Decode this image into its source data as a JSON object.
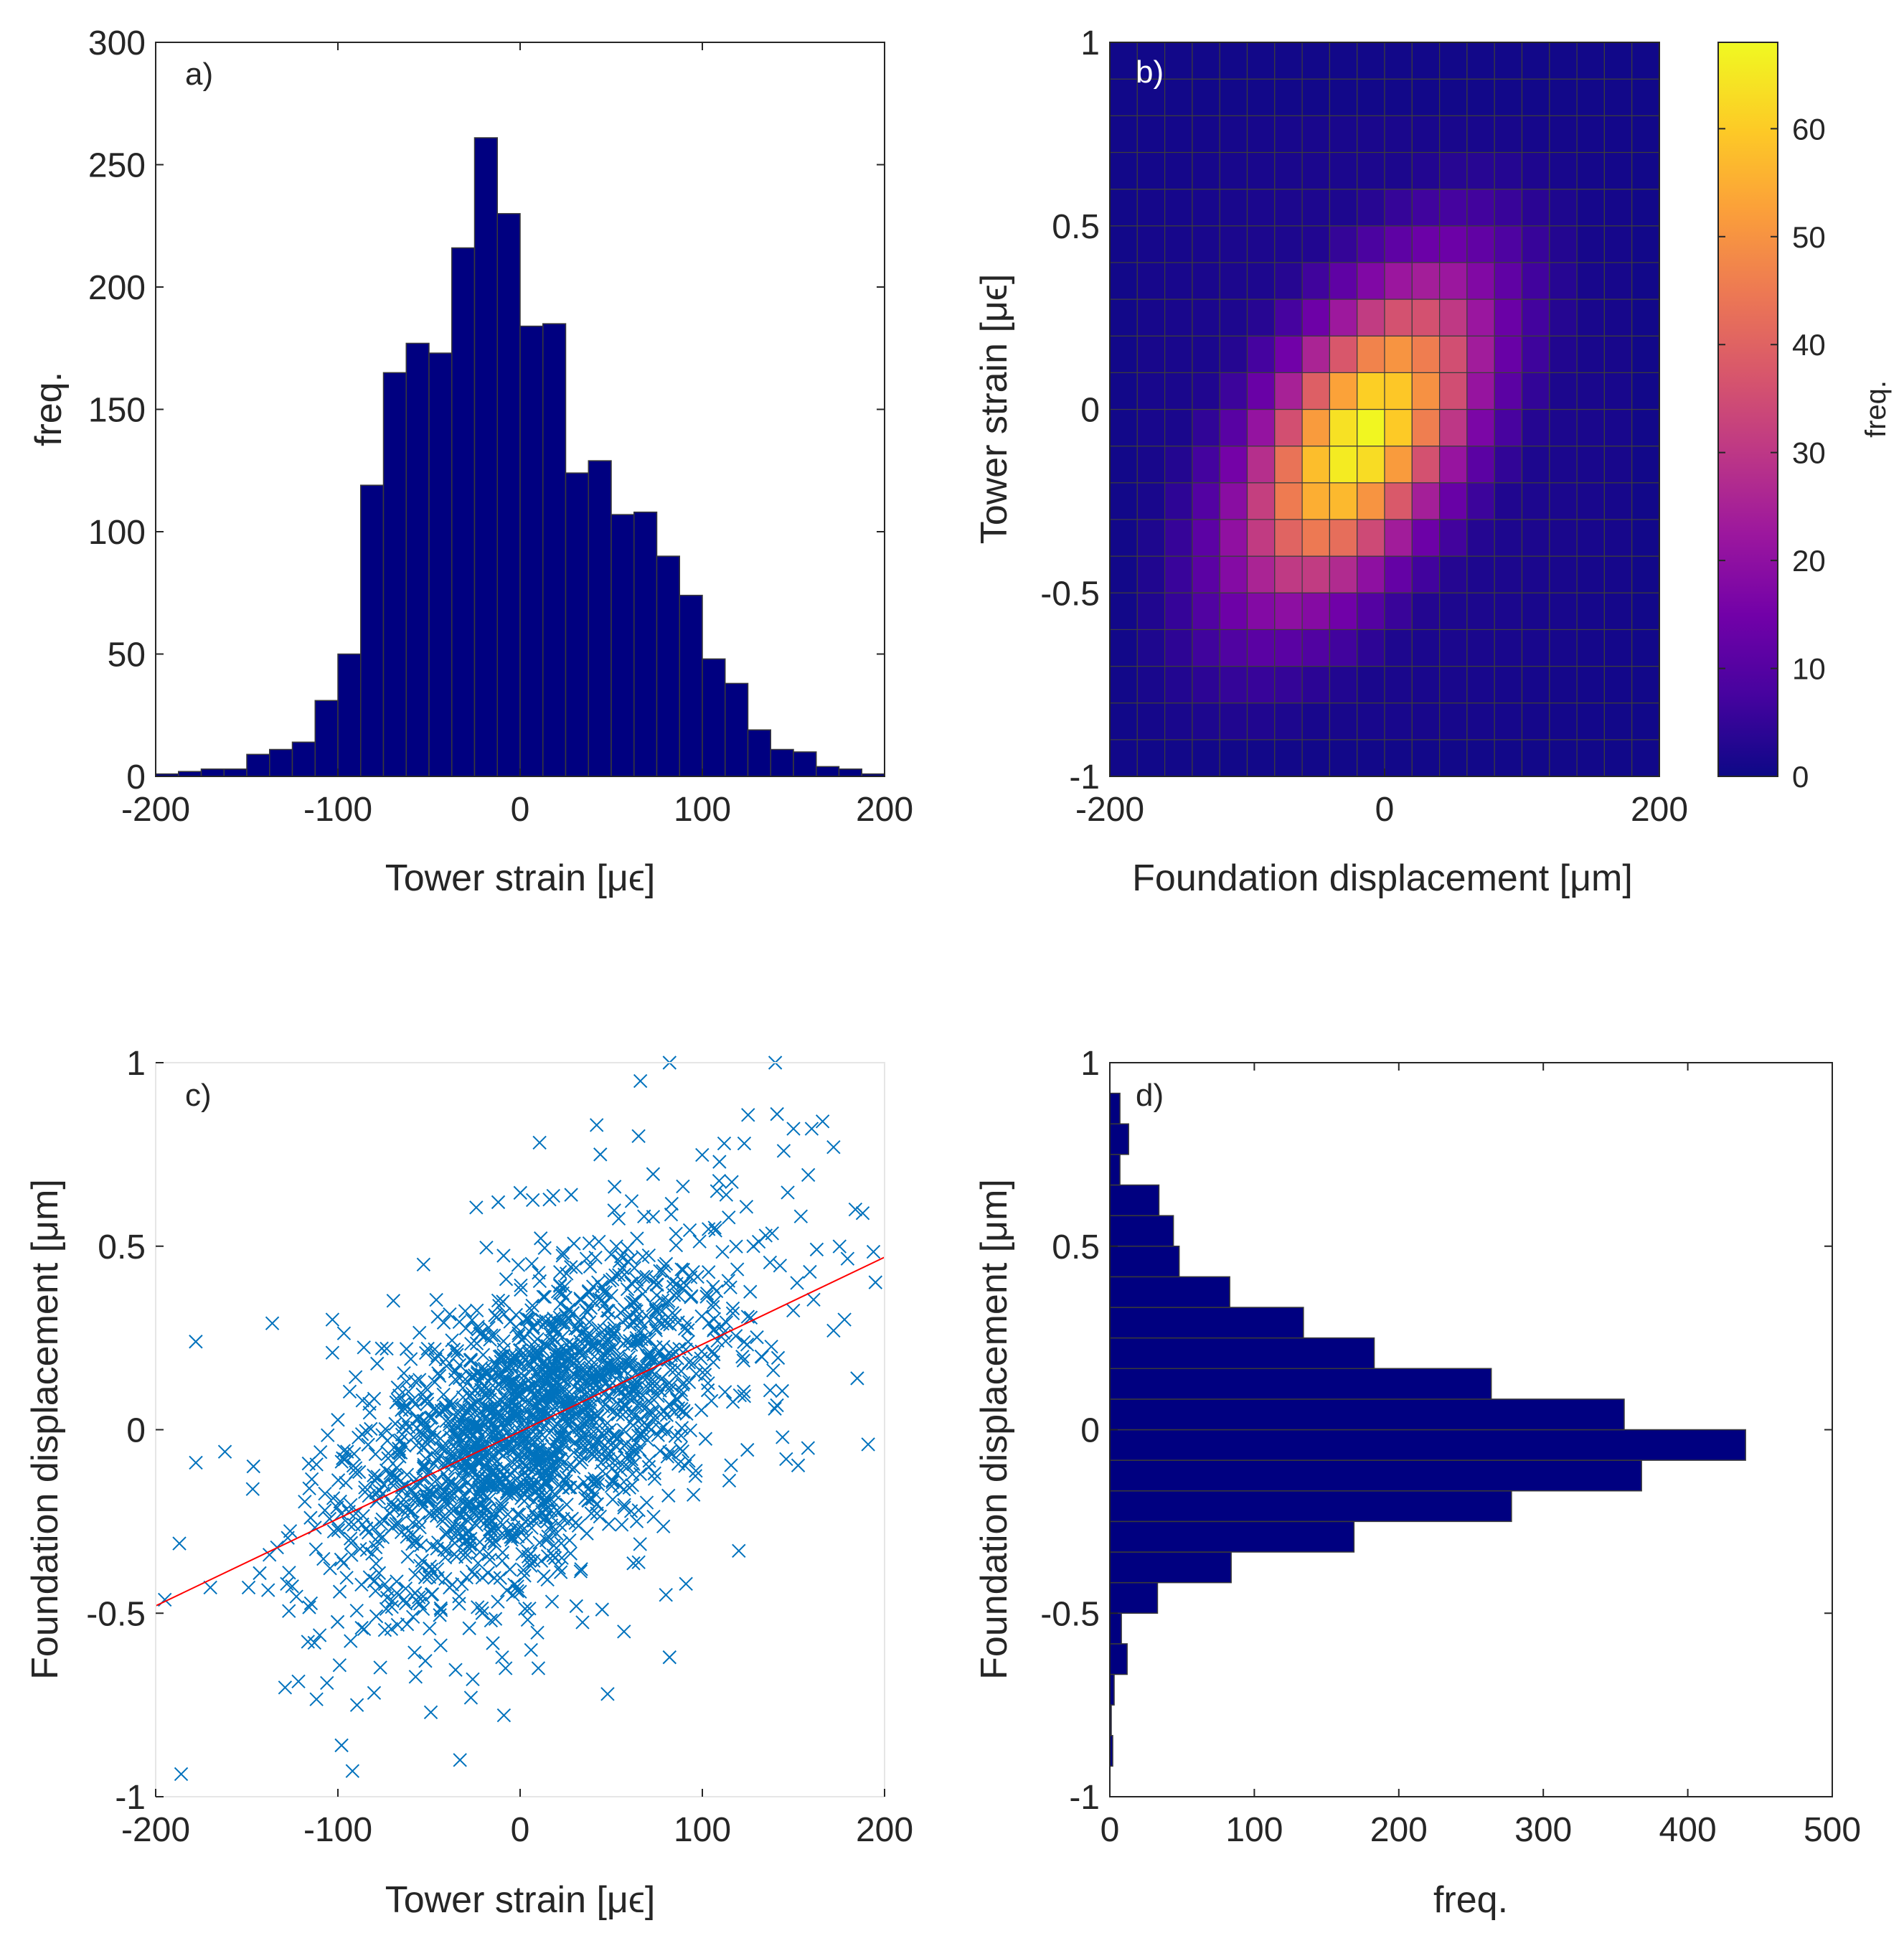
{
  "chart_data": [
    {
      "panel": "a)",
      "type": "bar",
      "title": "",
      "xlabel": "Tower strain [μϵ]",
      "ylabel": "freq.",
      "xlim": [
        -200,
        200
      ],
      "ylim": [
        0,
        300
      ],
      "xticks": [
        "-200",
        "-100",
        "0",
        "100",
        "200"
      ],
      "yticks": [
        "0",
        "50",
        "100",
        "150",
        "200",
        "250",
        "300"
      ],
      "bin_edges": [
        -200,
        -187.5,
        -175,
        -162.5,
        -150,
        -137.5,
        -125,
        -112.5,
        -100,
        -87.5,
        -75,
        -62.5,
        -50,
        -37.5,
        -25,
        -12.5,
        0,
        12.5,
        25,
        37.5,
        50,
        62.5,
        75,
        87.5,
        100,
        112.5,
        125,
        137.5,
        150,
        162.5,
        175,
        187.5,
        200
      ],
      "values": [
        1,
        2,
        3,
        3,
        9,
        11,
        14,
        31,
        50,
        119,
        165,
        177,
        173,
        216,
        261,
        230,
        184,
        185,
        124,
        129,
        107,
        108,
        90,
        74,
        48,
        38,
        19,
        11,
        10,
        4,
        3,
        1
      ],
      "bar_color": "#000080"
    },
    {
      "panel": "b)",
      "type": "heatmap",
      "xlabel": "Foundation displacement [μm]",
      "ylabel": "Tower strain [μϵ]",
      "colorbar_label": "freq.",
      "xlim": [
        -200,
        200
      ],
      "ylim": [
        -1,
        1
      ],
      "clim": [
        0,
        68
      ],
      "xticks": [
        "-200",
        "0",
        "200"
      ],
      "yticks": [
        "-1",
        "-0.5",
        "0",
        "0.5",
        "1"
      ],
      "colorbar_ticks": [
        "0",
        "10",
        "20",
        "30",
        "40",
        "50",
        "60"
      ],
      "grid_size": [
        20,
        20
      ],
      "peak": {
        "x": -17,
        "y": -0.08,
        "count": 68
      },
      "colormap": [
        "#0d0887",
        "#46039f",
        "#7201a8",
        "#9c179e",
        "#bd3786",
        "#d8576b",
        "#ed7953",
        "#fb9f3a",
        "#fdca26",
        "#f0f921"
      ]
    },
    {
      "panel": "c)",
      "type": "scatter",
      "xlabel": "Tower strain [μϵ]",
      "ylabel": "Foundation displacement [μm]",
      "xlim": [
        -200,
        200
      ],
      "ylim": [
        -1,
        1
      ],
      "xticks": [
        "-200",
        "-100",
        "0",
        "100",
        "200"
      ],
      "yticks": [
        "-1",
        "-0.5",
        "0",
        "0.5",
        "1"
      ],
      "marker": "x",
      "marker_color": "#0072bd",
      "n_points": 2000,
      "fit_line": {
        "x": [
          -200,
          200
        ],
        "y": [
          -0.48,
          0.47
        ],
        "color": "#ff0000"
      },
      "outliers": [
        [
          -187,
          -0.31
        ],
        [
          -178,
          0.24
        ],
        [
          -170,
          -0.43
        ],
        [
          -162,
          -0.06
        ],
        [
          -149,
          -0.43
        ],
        [
          -136,
          0.29
        ],
        [
          -128,
          -0.42
        ],
        [
          -115,
          -0.24
        ],
        [
          -110,
          -0.56
        ],
        [
          -106,
          -0.69
        ],
        [
          -103,
          0.3
        ],
        [
          -98,
          -0.86
        ],
        [
          -92,
          -0.93
        ],
        [
          -62,
          -0.53
        ],
        [
          -53,
          0.45
        ],
        [
          -52,
          -0.63
        ],
        [
          -49,
          -0.77
        ],
        [
          -33,
          -0.9
        ],
        [
          -27,
          -0.73
        ],
        [
          -26,
          -0.68
        ],
        [
          -16,
          -0.52
        ],
        [
          -12,
          0.62
        ],
        [
          -8,
          -0.65
        ],
        [
          -4,
          -0.45
        ],
        [
          6,
          -0.6
        ],
        [
          10,
          -0.65
        ],
        [
          28,
          0.64
        ],
        [
          33,
          0.3
        ],
        [
          42,
          0.83
        ],
        [
          44,
          0.75
        ],
        [
          45,
          -0.49
        ],
        [
          48,
          -0.72
        ],
        [
          57,
          -0.55
        ],
        [
          65,
          0.8
        ],
        [
          66,
          0.95
        ],
        [
          73,
          0.58
        ],
        [
          80,
          -0.45
        ],
        [
          82,
          1.0
        ],
        [
          82,
          -0.62
        ],
        [
          91,
          -0.42
        ],
        [
          108,
          0.65
        ],
        [
          112,
          0.78
        ],
        [
          120,
          -0.33
        ],
        [
          123,
          0.78
        ],
        [
          128,
          0.5
        ],
        [
          140,
          1.0
        ],
        [
          141,
          0.86
        ],
        [
          146,
          -0.08
        ],
        [
          150,
          0.82
        ],
        [
          152,
          0.4
        ],
        [
          158,
          -0.05
        ],
        [
          160,
          0.82
        ],
        [
          166,
          0.84
        ],
        [
          172,
          0.27
        ],
        [
          172,
          0.77
        ],
        [
          178,
          0.3
        ],
        [
          184,
          0.6
        ],
        [
          185,
          0.14
        ],
        [
          188,
          0.59
        ],
        [
          191,
          -0.04
        ]
      ]
    },
    {
      "panel": "d)",
      "type": "bar",
      "orientation": "horizontal",
      "xlabel": "freq.",
      "ylabel": "Foundation displacement [μm]",
      "xlim": [
        0,
        500
      ],
      "ylim": [
        -1,
        1
      ],
      "xticks": [
        "0",
        "100",
        "200",
        "300",
        "400",
        "500"
      ],
      "yticks": [
        "-1",
        "-0.5",
        "0",
        "0.5",
        "1"
      ],
      "bin_edges": [
        -1,
        -0.9167,
        -0.8333,
        -0.75,
        -0.6667,
        -0.5833,
        -0.5,
        -0.4167,
        -0.3333,
        -0.25,
        -0.1667,
        -0.0833,
        0,
        0.0833,
        0.1667,
        0.25,
        0.3333,
        0.4167,
        0.5,
        0.5833,
        0.6667,
        0.75,
        0.8333,
        0.9167,
        1
      ],
      "values": [
        0,
        2,
        1,
        3,
        12,
        8,
        33,
        84,
        169,
        278,
        368,
        440,
        356,
        264,
        183,
        134,
        83,
        48,
        44,
        34,
        7,
        13,
        7,
        0
      ],
      "bar_color": "#000080"
    }
  ]
}
